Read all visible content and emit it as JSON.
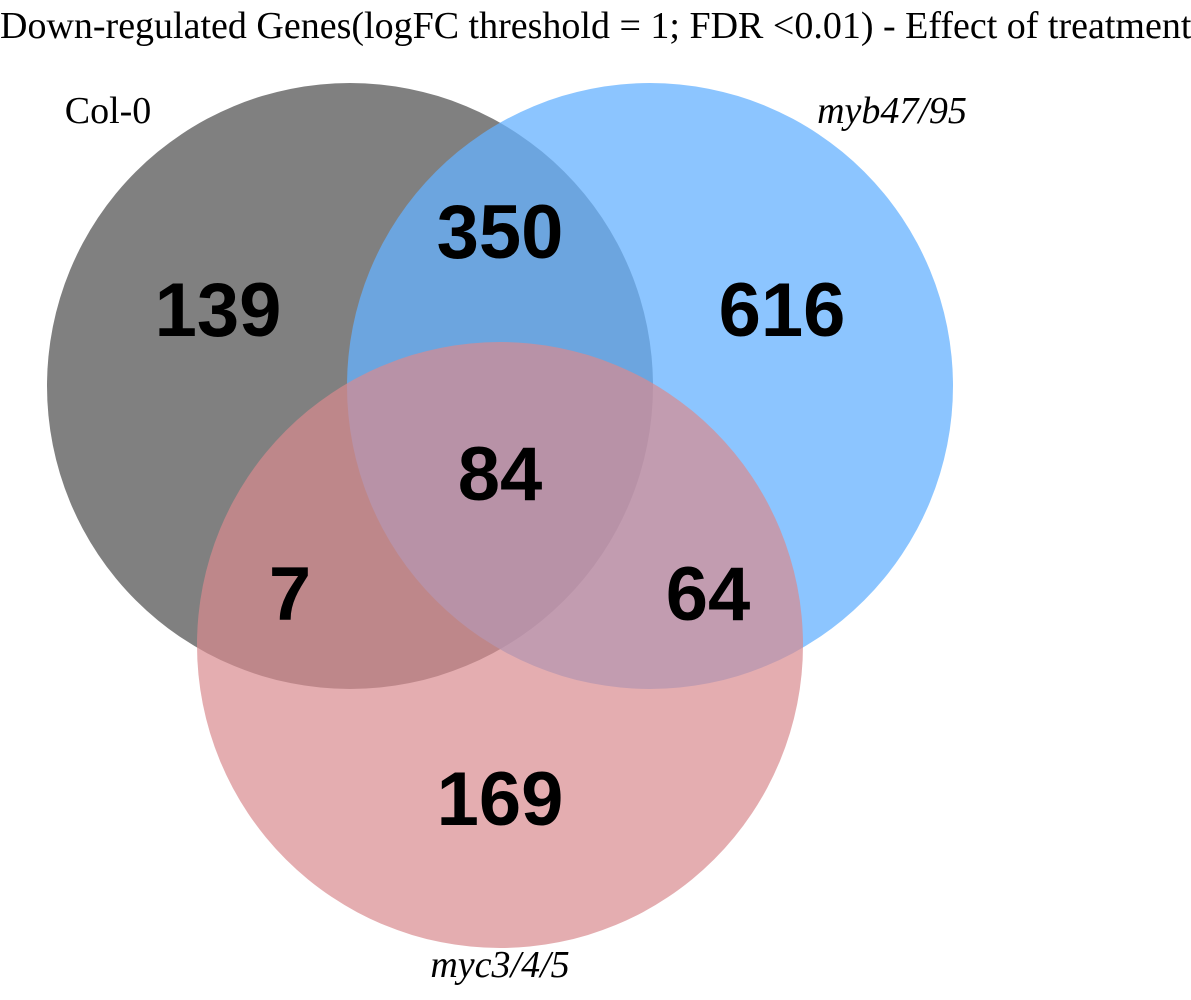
{
  "title": "Down-regulated Genes(logFC threshold = 1; FDR <0.01) - Effect of treatment",
  "sets": [
    {
      "label": "Col-0",
      "italic": false,
      "color": "#555555"
    },
    {
      "label": "myb47/95",
      "italic": true,
      "color": "#66b2ff"
    },
    {
      "label": "myc3/4/5",
      "italic": true,
      "color": "#d98a8f"
    }
  ],
  "regions": {
    "col0_only": "139",
    "col0_myb": "350",
    "myb_only": "616",
    "all_three": "84",
    "col0_myc": "7",
    "myb_myc": "64",
    "myc_only": "169"
  }
}
